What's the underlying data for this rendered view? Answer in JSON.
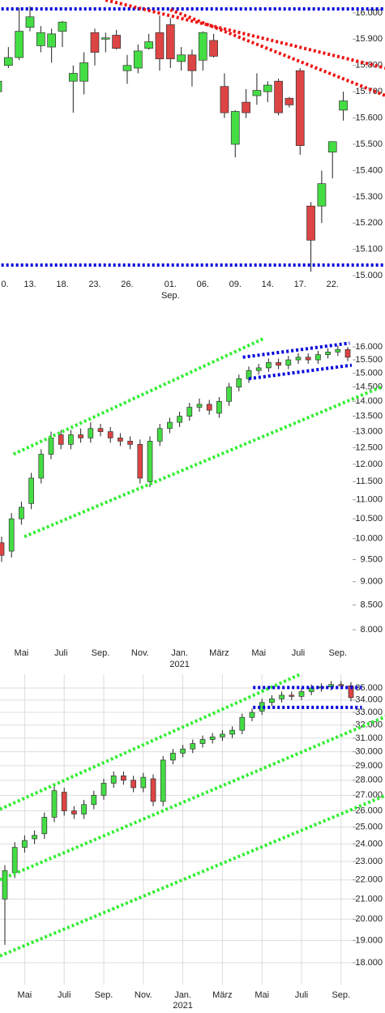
{
  "chart_data": [
    {
      "type": "candlestick",
      "log_scale": false,
      "grid": false,
      "up_color": "#44dd44",
      "down_color": "#dd4444",
      "categories": [
        "0.",
        null,
        null,
        "13.",
        null,
        null,
        "18.",
        null,
        null,
        "23.",
        null,
        null,
        "26.",
        null,
        null,
        null,
        "01.",
        null,
        null,
        "06.",
        null,
        null,
        "09.",
        null,
        null,
        "14.",
        null,
        null,
        "17.",
        null,
        null,
        "22.",
        null
      ],
      "x_sublabels": [
        null,
        null,
        null,
        null,
        null,
        null,
        null,
        null,
        null,
        null,
        null,
        null,
        null,
        null,
        null,
        null,
        "Sep.",
        null,
        null,
        null,
        null,
        null,
        null,
        null,
        null,
        null,
        null,
        null,
        null,
        null,
        null,
        null,
        null
      ],
      "open": [
        15700,
        15800,
        15830,
        15945,
        15875,
        15870,
        15930,
        15740,
        15740,
        15925,
        15900,
        15915,
        15780,
        15790,
        15865,
        15925,
        15955,
        15815,
        15840,
        15820,
        15895,
        15720,
        15500,
        15660,
        15685,
        15700,
        15740,
        15675,
        15780,
        15265,
        15265,
        15470,
        15630
      ],
      "high": [
        15760,
        15870,
        16020,
        16025,
        15950,
        15940,
        15970,
        15800,
        15850,
        15940,
        15925,
        15935,
        15840,
        15880,
        15920,
        15990,
        15980,
        15870,
        15860,
        15930,
        15920,
        15770,
        15630,
        15710,
        15770,
        15740,
        15750,
        15680,
        15790,
        15280,
        15400,
        15510,
        15700
      ],
      "low": [
        15690,
        15790,
        15820,
        15930,
        15850,
        15810,
        15870,
        15620,
        15690,
        15800,
        15850,
        15860,
        15730,
        15770,
        15860,
        15780,
        15790,
        15780,
        15720,
        15780,
        15830,
        15600,
        15450,
        15600,
        15650,
        15660,
        15610,
        15640,
        15460,
        15015,
        15200,
        15370,
        15590
      ],
      "close": [
        15740,
        15830,
        15930,
        15985,
        15925,
        15920,
        15965,
        15770,
        15810,
        15850,
        15905,
        15865,
        15800,
        15855,
        15890,
        15825,
        15825,
        15840,
        15780,
        15925,
        15835,
        15620,
        15625,
        15620,
        15705,
        15725,
        15620,
        15650,
        15495,
        15135,
        15350,
        15510,
        15665
      ],
      "ylim": [
        14985,
        16049
      ],
      "yticks": [
        {
          "value": 16000,
          "label": "16.000"
        },
        {
          "value": 15900,
          "label": "15.900"
        },
        {
          "value": 15800,
          "label": "15.800"
        },
        {
          "value": 15700,
          "label": "15.700"
        },
        {
          "value": 15600,
          "label": "15.600"
        },
        {
          "value": 15500,
          "label": "15.500"
        },
        {
          "value": 15400,
          "label": "15.400"
        },
        {
          "value": 15300,
          "label": "15.300"
        },
        {
          "value": 15200,
          "label": "15.200"
        },
        {
          "value": 15100,
          "label": "15.100"
        },
        {
          "value": 15000,
          "label": "15.000"
        }
      ],
      "trend_lines": [
        {
          "color": "#0000dd",
          "x": [
            -1,
            36
          ],
          "y": [
            16015,
            16015
          ]
        },
        {
          "color": "#0000dd",
          "x": [
            -1,
            36
          ],
          "y": [
            15040,
            15040
          ]
        },
        {
          "color": "#ee1111",
          "x": [
            10,
            35.9
          ],
          "y": [
            16049,
            15790
          ]
        },
        {
          "color": "#ee1111",
          "x": [
            16,
            35.9
          ],
          "y": [
            16012,
            15685
          ]
        }
      ]
    },
    {
      "type": "candlestick",
      "log_scale": true,
      "grid": false,
      "up_color": "#44dd44",
      "down_color": "#dd4444",
      "categories": [
        null,
        null,
        "Mai",
        null,
        null,
        null,
        "Juli",
        null,
        null,
        null,
        "Sep.",
        null,
        null,
        null,
        "Nov.",
        null,
        null,
        null,
        "Jan.",
        null,
        null,
        null,
        "März",
        null,
        null,
        null,
        "Mai",
        null,
        null,
        null,
        "Juli",
        null,
        null,
        null,
        "Sep.",
        null
      ],
      "x_sublabels": [
        null,
        null,
        null,
        null,
        null,
        null,
        null,
        null,
        null,
        null,
        null,
        null,
        null,
        null,
        null,
        null,
        null,
        null,
        "2021",
        null,
        null,
        null,
        null,
        null,
        null,
        null,
        null,
        null,
        null,
        null,
        null,
        null,
        null,
        null,
        null,
        null
      ],
      "open": [
        9900,
        9700,
        10500,
        10900,
        11600,
        12300,
        12900,
        12600,
        12900,
        12800,
        13100,
        13000,
        12800,
        12700,
        12600,
        11500,
        12700,
        13100,
        13300,
        13500,
        13800,
        13900,
        13600,
        14000,
        14500,
        14800,
        15100,
        15200,
        15400,
        15300,
        15500,
        15600,
        15500,
        15700,
        15800,
        15900
      ],
      "high": [
        10050,
        10650,
        10950,
        11750,
        12450,
        13000,
        13050,
        13050,
        13100,
        13300,
        13250,
        13150,
        12950,
        12850,
        12750,
        12850,
        13250,
        13450,
        13650,
        13950,
        14100,
        14050,
        14150,
        14650,
        14950,
        15250,
        15350,
        15550,
        15550,
        15650,
        15750,
        15750,
        15850,
        15950,
        16050,
        16000
      ],
      "low": [
        9450,
        9550,
        10350,
        10750,
        11450,
        12150,
        12450,
        12450,
        12650,
        12650,
        12850,
        12650,
        12550,
        12450,
        11450,
        11350,
        12550,
        12950,
        13150,
        13350,
        13650,
        13550,
        13450,
        13850,
        14350,
        14650,
        14950,
        15050,
        15150,
        15150,
        15350,
        15350,
        15350,
        15550,
        15650,
        15450
      ],
      "close": [
        9600,
        10500,
        10800,
        11600,
        12300,
        12800,
        12600,
        12900,
        12800,
        13100,
        13000,
        12800,
        12700,
        12600,
        11600,
        12700,
        13100,
        13300,
        13500,
        13800,
        13900,
        13700,
        14000,
        14500,
        14800,
        15100,
        15200,
        15400,
        15300,
        15500,
        15600,
        15500,
        15700,
        15800,
        15900,
        15600
      ],
      "ylim": [
        7720,
        16750
      ],
      "yticks": [
        {
          "value": 16000,
          "label": "16.000"
        },
        {
          "value": 15500,
          "label": "15.500"
        },
        {
          "value": 15000,
          "label": "15.000"
        },
        {
          "value": 14500,
          "label": "14.500"
        },
        {
          "value": 14000,
          "label": "14.000"
        },
        {
          "value": 13500,
          "label": "13.500"
        },
        {
          "value": 13000,
          "label": "13.000"
        },
        {
          "value": 12500,
          "label": "12.500"
        },
        {
          "value": 12000,
          "label": "12.000"
        },
        {
          "value": 11500,
          "label": "11.500"
        },
        {
          "value": 11000,
          "label": "11.000"
        },
        {
          "value": 10500,
          "label": "10.500"
        },
        {
          "value": 10000,
          "label": "10.000"
        },
        {
          "value": 9500,
          "label": "9.500"
        },
        {
          "value": 9000,
          "label": "9.000"
        },
        {
          "value": 8500,
          "label": "8.500"
        },
        {
          "value": 8000,
          "label": "8.000"
        }
      ],
      "trend_lines": [
        {
          "color": "#33ee33",
          "x": [
            1.2,
            26.6
          ],
          "y": [
            12300,
            16350
          ]
        },
        {
          "color": "#33ee33",
          "x": [
            2.3,
            38.5
          ],
          "y": [
            10050,
            14520
          ]
        },
        {
          "color": "#0000dd",
          "x": [
            24.4,
            35.2
          ],
          "y": [
            15600,
            16150
          ]
        },
        {
          "color": "#0000dd",
          "x": [
            25,
            35.4
          ],
          "y": [
            14800,
            15300
          ]
        }
      ]
    },
    {
      "type": "candlestick",
      "log_scale": true,
      "grid": true,
      "up_color": "#44dd44",
      "down_color": "#dd4444",
      "categories": [
        null,
        null,
        "Mai",
        null,
        null,
        null,
        "Juli",
        null,
        null,
        null,
        "Sep.",
        null,
        null,
        null,
        "Nov.",
        null,
        null,
        null,
        "Jan.",
        null,
        null,
        null,
        "März",
        null,
        null,
        null,
        "Mai",
        null,
        null,
        null,
        "Juli",
        null,
        null,
        null,
        "Sep.",
        null
      ],
      "x_sublabels": [
        null,
        null,
        null,
        null,
        null,
        null,
        null,
        null,
        null,
        null,
        null,
        null,
        null,
        null,
        null,
        null,
        null,
        null,
        "2021",
        null,
        null,
        null,
        null,
        null,
        null,
        null,
        null,
        null,
        null,
        null,
        null,
        null,
        null,
        null,
        null,
        null
      ],
      "open": [
        21000,
        22400,
        23800,
        24300,
        24600,
        25600,
        27200,
        26000,
        25800,
        26400,
        27000,
        27800,
        28300,
        28000,
        27500,
        28100,
        26600,
        29400,
        29900,
        30200,
        30600,
        30900,
        31100,
        31300,
        31600,
        32600,
        33100,
        33800,
        34100,
        34400,
        34300,
        34700,
        35000,
        35100,
        35300,
        35200
      ],
      "high": [
        22800,
        24100,
        24500,
        24800,
        25900,
        27600,
        27500,
        26300,
        26700,
        27300,
        28100,
        28600,
        28600,
        28300,
        28500,
        28400,
        29700,
        30200,
        30500,
        30900,
        31200,
        31400,
        31600,
        31900,
        32900,
        33300,
        34100,
        34400,
        34700,
        34700,
        35000,
        35300,
        35400,
        35600,
        35600,
        35500
      ],
      "low": [
        18800,
        22100,
        23500,
        24000,
        24300,
        25300,
        25700,
        25500,
        25500,
        26100,
        26700,
        27500,
        27700,
        27200,
        27200,
        26300,
        26300,
        29100,
        29600,
        29900,
        30300,
        30600,
        30800,
        31000,
        31300,
        32300,
        32800,
        33500,
        33800,
        34000,
        34000,
        34400,
        34700,
        34800,
        34900,
        33900
      ],
      "close": [
        22500,
        23800,
        24200,
        24500,
        25600,
        27300,
        26000,
        25800,
        26400,
        27000,
        27800,
        28300,
        28000,
        27500,
        28200,
        26600,
        29400,
        29900,
        30200,
        30600,
        30900,
        31100,
        31300,
        31600,
        32600,
        33000,
        33800,
        34100,
        34400,
        34300,
        34700,
        35000,
        35100,
        35300,
        35200,
        34200
      ],
      "ylim": [
        17071,
        36190
      ],
      "yticks": [
        {
          "value": 35000,
          "label": "35.000"
        },
        {
          "value": 34000,
          "label": "34.000"
        },
        {
          "value": 33000,
          "label": "33.000"
        },
        {
          "value": 32000,
          "label": "32.000"
        },
        {
          "value": 31000,
          "label": "31.000"
        },
        {
          "value": 30000,
          "label": "30.000"
        },
        {
          "value": 29000,
          "label": "29.000"
        },
        {
          "value": 28000,
          "label": "28.000"
        },
        {
          "value": 27000,
          "label": "27.000"
        },
        {
          "value": 26000,
          "label": "26.000"
        },
        {
          "value": 25000,
          "label": "25.000"
        },
        {
          "value": 24000,
          "label": "24.000"
        },
        {
          "value": 23000,
          "label": "23.000"
        },
        {
          "value": 22000,
          "label": "22.000"
        },
        {
          "value": 21000,
          "label": "21.000"
        },
        {
          "value": 20000,
          "label": "20.000"
        },
        {
          "value": 19000,
          "label": "19.000"
        },
        {
          "value": 18000,
          "label": "18.000"
        }
      ],
      "trend_lines": [
        {
          "color": "#33ee33",
          "x": [
            -0.5,
            29.9
          ],
          "y": [
            26100,
            36200
          ]
        },
        {
          "color": "#33ee33",
          "x": [
            -0.5,
            38.9
          ],
          "y": [
            22000,
            32800
          ]
        },
        {
          "color": "#33ee33",
          "x": [
            -0.5,
            38.9
          ],
          "y": [
            18300,
            27100
          ]
        },
        {
          "color": "#0000dd",
          "x": [
            25.1,
            36.1
          ],
          "y": [
            35050,
            35050
          ]
        },
        {
          "color": "#0000dd",
          "x": [
            25.1,
            36.1
          ],
          "y": [
            33400,
            33400
          ]
        }
      ]
    }
  ]
}
